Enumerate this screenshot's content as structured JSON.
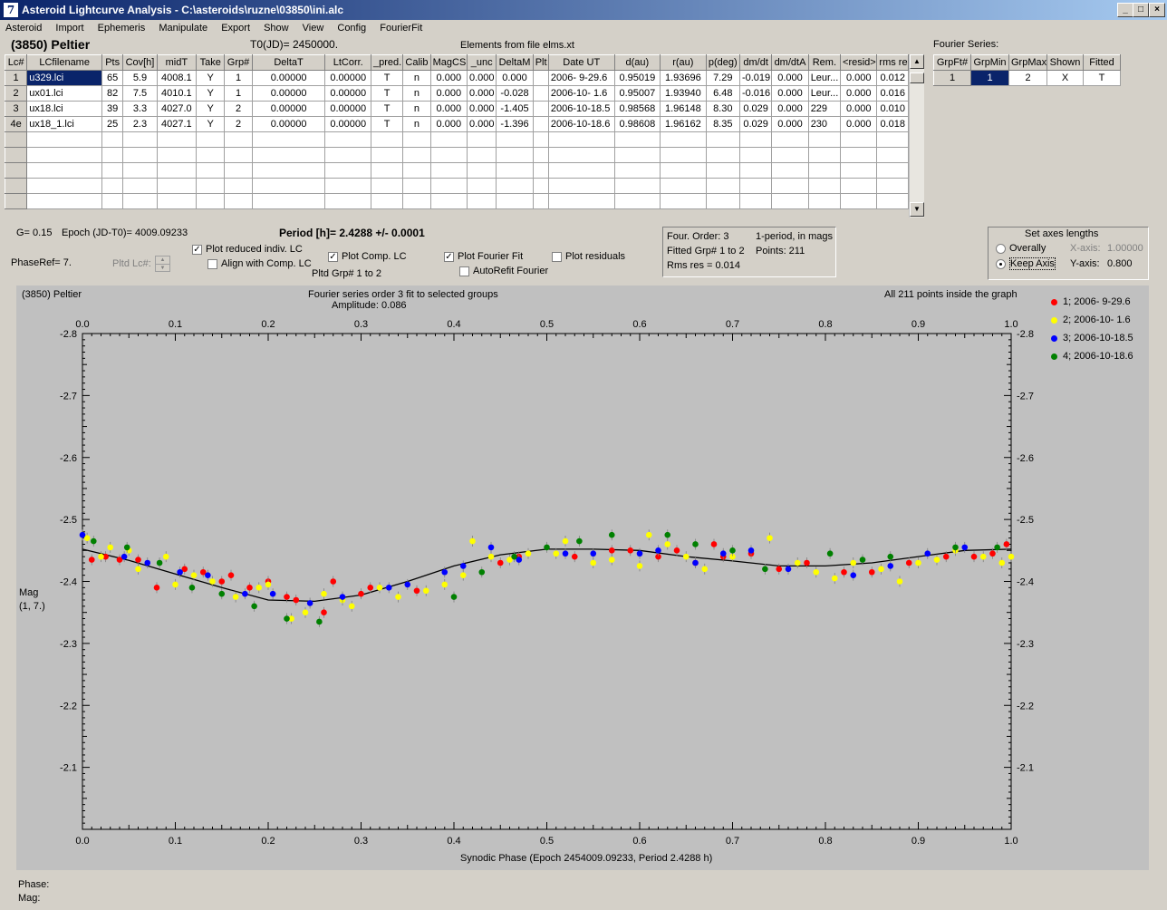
{
  "window": {
    "title": "Asteroid Lightcurve Analysis - C:\\asteroids\\ruzne\\03850\\ini.alc",
    "app_icon": "ALC",
    "min_label": "_",
    "max_label": "□",
    "close_label": "×"
  },
  "menu": [
    "Asteroid",
    "Import",
    "Ephemeris",
    "Manipulate",
    "Export",
    "Show",
    "View",
    "Config",
    "FourierFit"
  ],
  "header": {
    "asteroid": "(3850) Peltier",
    "t0": "T0(JD)= 2450000.",
    "elements": "Elements from file elms.xt"
  },
  "lc_table": {
    "columns": [
      "Lc#",
      "LCfilename",
      "Pts",
      "Cov[h]",
      "midT",
      "Take",
      "Grp#",
      "DeltaT",
      "LtCorr.",
      "_pred.",
      "Calib",
      "MagCS",
      "_unc",
      "DeltaM",
      "Plt",
      "Date UT",
      "d(au)",
      "r(au)",
      "p(deg)",
      "dm/dt",
      "dm/dtA",
      "Rem.",
      "<resid>",
      "rms res"
    ],
    "rows": [
      [
        "1",
        "u329.lci",
        "65",
        "5.9",
        "4008.1",
        "Y",
        "1",
        "0.00000",
        "0.00000",
        "T",
        "n",
        "0.000",
        "0.000",
        "0.000",
        "",
        "2006- 9-29.6",
        "0.95019",
        "1.93696",
        "7.29",
        "-0.019",
        "0.000",
        "Leur...",
        "0.000",
        "0.012"
      ],
      [
        "2",
        "ux01.lci",
        "82",
        "7.5",
        "4010.1",
        "Y",
        "1",
        "0.00000",
        "0.00000",
        "T",
        "n",
        "0.000",
        "0.000",
        "-0.028",
        "",
        "2006-10- 1.6",
        "0.95007",
        "1.93940",
        "6.48",
        "-0.016",
        "0.000",
        "Leur...",
        "0.000",
        "0.016"
      ],
      [
        "3",
        "ux18.lci",
        "39",
        "3.3",
        "4027.0",
        "Y",
        "2",
        "0.00000",
        "0.00000",
        "T",
        "n",
        "0.000",
        "0.000",
        "-1.405",
        "",
        "2006-10-18.5",
        "0.98568",
        "1.96148",
        "8.30",
        "0.029",
        "0.000",
        "229",
        "0.000",
        "0.010"
      ],
      [
        "4e",
        "ux18_1.lci",
        "25",
        "2.3",
        "4027.1",
        "Y",
        "2",
        "0.00000",
        "0.00000",
        "T",
        "n",
        "0.000",
        "0.000",
        "-1.396",
        "",
        "2006-10-18.6",
        "0.98608",
        "1.96162",
        "8.35",
        "0.029",
        "0.000",
        "230",
        "0.000",
        "0.018"
      ]
    ],
    "empty_rows": 5,
    "scroll_up": "▲",
    "scroll_down": "▼"
  },
  "fourier_series": {
    "title": "Fourier Series:",
    "columns": [
      "GrpFt#",
      "GrpMin",
      "GrpMax",
      "Shown",
      "Fitted"
    ],
    "row": [
      "1",
      "1",
      "2",
      "X",
      "T"
    ]
  },
  "controls": {
    "g": "G= 0.15",
    "epoch": "Epoch (JD-T0)= 4009.09233",
    "period": "Period [h]= 2.4288 +/- 0.0001",
    "phaseref": "PhaseRef= 7.",
    "pltd_lc": "Pltd Lc#:",
    "plot_reduced": "Plot reduced indiv. LC",
    "align_comp": "Align with Comp. LC",
    "plot_comp": "Plot Comp. LC",
    "pltd_grp": "Pltd Grp#  1   to   2",
    "plot_fourier": "Plot Fourier Fit",
    "autorefit": "AutoRefit Fourier",
    "plot_residuals": "Plot residuals",
    "check_mark": "✓",
    "check_reduced": true,
    "check_align": false,
    "check_comp": true,
    "check_fourier": true,
    "check_autorefit": false,
    "check_residuals": false
  },
  "info": {
    "order": "Four. Order:  3",
    "period_mode": "1-period, in mags",
    "fitted": "Fitted Grp# 1 to 2",
    "points": "Points: 211",
    "rms": "Rms res     = 0.014"
  },
  "axes_box": {
    "title": "Set axes lengths",
    "overally": "Overally",
    "keep_axis": "Keep Axis",
    "x_label": "X-axis:",
    "x_value": "1.00000",
    "y_label": "Y-axis:",
    "y_value": "0.800",
    "selected": "keep_axis"
  },
  "plot": {
    "name": "(3850) Peltier",
    "title": "Fourier series order 3 fit to selected groups",
    "amplitude": "Amplitude: 0.086",
    "points_note": "All 211 points inside the graph",
    "ylabel_line1": "Mag",
    "ylabel_line2": "(1, 7.)",
    "xlabel": "Synodic Phase (Epoch 2454009.09233, Period 2.4288 h)"
  },
  "legend": [
    {
      "label": "1; 2006- 9-29.6",
      "color": "#ff0000"
    },
    {
      "label": "2; 2006-10- 1.6",
      "color": "#ffff00"
    },
    {
      "label": "3; 2006-10-18.5",
      "color": "#0000ff"
    },
    {
      "label": "4; 2006-10-18.6",
      "color": "#008000"
    }
  ],
  "status": {
    "phase": "Phase:",
    "mag": "Mag:"
  },
  "chart_data": {
    "type": "scatter",
    "x_range": [
      0.0,
      1.0
    ],
    "y_range": [
      -2.8,
      -2.0
    ],
    "x_ticks": [
      "0.0",
      "0.1",
      "0.2",
      "0.3",
      "0.4",
      "0.5",
      "0.6",
      "0.7",
      "0.8",
      "0.9",
      "1.0"
    ],
    "y_ticks": [
      "-2.8",
      "-2.7",
      "-2.6",
      "-2.5",
      "-2.4",
      "-2.3",
      "-2.2",
      "-2.1"
    ],
    "fourier_fit": {
      "x": [
        0.0,
        0.05,
        0.1,
        0.15,
        0.2,
        0.25,
        0.3,
        0.35,
        0.4,
        0.45,
        0.5,
        0.55,
        0.6,
        0.65,
        0.7,
        0.75,
        0.8,
        0.85,
        0.9,
        0.95,
        1.0
      ],
      "y": [
        -2.452,
        -2.434,
        -2.412,
        -2.39,
        -2.37,
        -2.368,
        -2.378,
        -2.4,
        -2.425,
        -2.443,
        -2.452,
        -2.452,
        -2.45,
        -2.44,
        -2.433,
        -2.425,
        -2.425,
        -2.43,
        -2.44,
        -2.45,
        -2.452
      ]
    },
    "series": [
      {
        "name": "1; 2006- 9-29.6",
        "color": "#ff0000",
        "x": [
          0.01,
          0.025,
          0.04,
          0.06,
          0.08,
          0.11,
          0.13,
          0.15,
          0.16,
          0.18,
          0.2,
          0.22,
          0.23,
          0.26,
          0.27,
          0.3,
          0.31,
          0.36,
          0.45,
          0.47,
          0.53,
          0.57,
          0.59,
          0.62,
          0.64,
          0.66,
          0.68,
          0.69,
          0.72,
          0.75,
          0.78,
          0.82,
          0.85,
          0.89,
          0.93,
          0.96,
          0.98,
          0.995
        ],
        "y": [
          -2.435,
          -2.44,
          -2.435,
          -2.435,
          -2.39,
          -2.42,
          -2.415,
          -2.4,
          -2.41,
          -2.39,
          -2.4,
          -2.375,
          -2.37,
          -2.35,
          -2.4,
          -2.38,
          -2.39,
          -2.385,
          -2.43,
          -2.44,
          -2.44,
          -2.45,
          -2.45,
          -2.44,
          -2.45,
          -2.43,
          -2.46,
          -2.44,
          -2.445,
          -2.42,
          -2.43,
          -2.415,
          -2.415,
          -2.43,
          -2.44,
          -2.44,
          -2.445,
          -2.46
        ]
      },
      {
        "name": "2; 2006-10- 1.6",
        "color": "#ffff00",
        "x": [
          0.005,
          0.02,
          0.03,
          0.05,
          0.06,
          0.09,
          0.1,
          0.12,
          0.14,
          0.165,
          0.19,
          0.2,
          0.225,
          0.24,
          0.26,
          0.28,
          0.29,
          0.32,
          0.34,
          0.37,
          0.39,
          0.41,
          0.42,
          0.44,
          0.46,
          0.48,
          0.51,
          0.52,
          0.55,
          0.57,
          0.6,
          0.61,
          0.63,
          0.65,
          0.67,
          0.7,
          0.74,
          0.77,
          0.79,
          0.81,
          0.83,
          0.86,
          0.88,
          0.9,
          0.92,
          0.94,
          0.97,
          0.99,
          1.0
        ],
        "y": [
          -2.47,
          -2.44,
          -2.455,
          -2.45,
          -2.42,
          -2.44,
          -2.395,
          -2.41,
          -2.4,
          -2.375,
          -2.39,
          -2.395,
          -2.34,
          -2.35,
          -2.38,
          -2.37,
          -2.36,
          -2.39,
          -2.375,
          -2.385,
          -2.395,
          -2.41,
          -2.465,
          -2.44,
          -2.435,
          -2.445,
          -2.445,
          -2.465,
          -2.43,
          -2.435,
          -2.425,
          -2.475,
          -2.46,
          -2.44,
          -2.42,
          -2.44,
          -2.47,
          -2.43,
          -2.415,
          -2.405,
          -2.43,
          -2.42,
          -2.4,
          -2.43,
          -2.435,
          -2.45,
          -2.44,
          -2.43,
          -2.44
        ]
      },
      {
        "name": "3; 2006-10-18.5",
        "color": "#0000ff",
        "x": [
          0.0,
          0.045,
          0.07,
          0.105,
          0.135,
          0.175,
          0.205,
          0.245,
          0.28,
          0.33,
          0.35,
          0.39,
          0.41,
          0.44,
          0.47,
          0.52,
          0.55,
          0.6,
          0.62,
          0.66,
          0.69,
          0.72,
          0.76,
          0.83,
          0.87,
          0.91,
          0.95
        ],
        "y": [
          -2.475,
          -2.44,
          -2.43,
          -2.415,
          -2.41,
          -2.38,
          -2.38,
          -2.365,
          -2.375,
          -2.39,
          -2.395,
          -2.415,
          -2.425,
          -2.455,
          -2.435,
          -2.445,
          -2.445,
          -2.445,
          -2.45,
          -2.43,
          -2.445,
          -2.45,
          -2.42,
          -2.41,
          -2.425,
          -2.445,
          -2.455
        ]
      },
      {
        "name": "4; 2006-10-18.6",
        "color": "#008000",
        "x": [
          0.012,
          0.048,
          0.083,
          0.118,
          0.15,
          0.185,
          0.22,
          0.255,
          0.4,
          0.43,
          0.465,
          0.5,
          0.535,
          0.57,
          0.63,
          0.66,
          0.7,
          0.735,
          0.805,
          0.84,
          0.87,
          0.94,
          0.985
        ],
        "y": [
          -2.465,
          -2.455,
          -2.43,
          -2.39,
          -2.38,
          -2.36,
          -2.34,
          -2.335,
          -2.375,
          -2.415,
          -2.44,
          -2.455,
          -2.465,
          -2.475,
          -2.475,
          -2.46,
          -2.45,
          -2.42,
          -2.445,
          -2.435,
          -2.44,
          -2.455,
          -2.455
        ]
      }
    ]
  }
}
